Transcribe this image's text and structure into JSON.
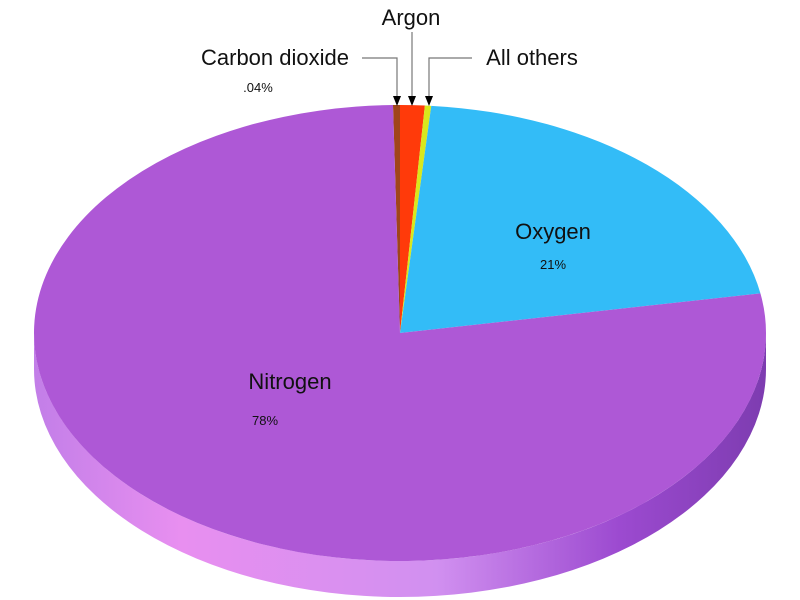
{
  "chart_data": {
    "type": "pie",
    "style": "3d",
    "slices": [
      {
        "name": "Carbon dioxide",
        "value": 0.04,
        "value_label": ".04%",
        "color": "#a0451a"
      },
      {
        "name": "Argon",
        "value": 0.93,
        "value_label": "",
        "color": "#ff3a0a"
      },
      {
        "name": "All others",
        "value": 0.03,
        "value_label": "",
        "color": "#d8e81c"
      },
      {
        "name": "Oxygen",
        "value": 21,
        "value_label": "21%",
        "color": "#33bcf7"
      },
      {
        "name": "Nitrogen",
        "value": 78,
        "value_label": "78%",
        "color": "#ae58d6"
      }
    ],
    "side_colors": {
      "left": "#e68ff0",
      "right": "#8a3fc4"
    }
  }
}
